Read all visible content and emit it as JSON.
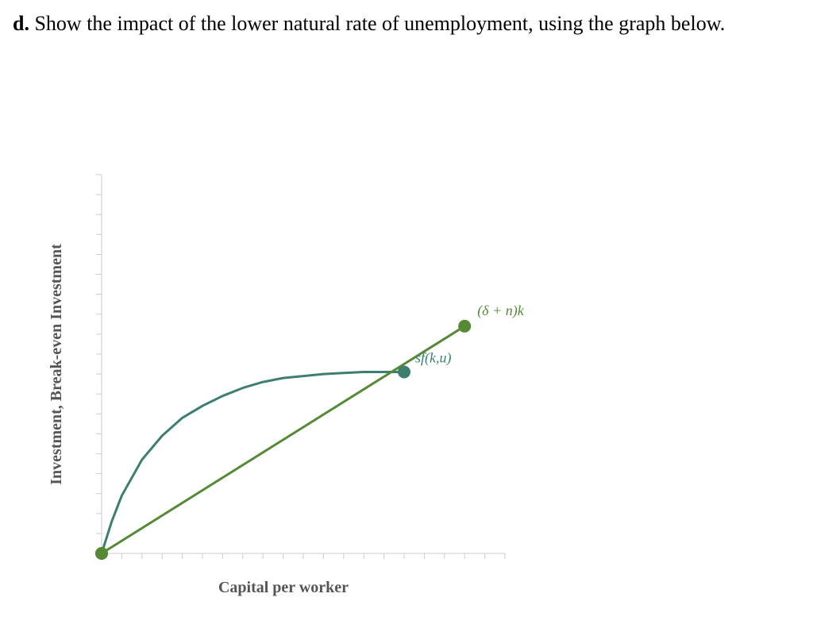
{
  "question": {
    "prefix": "d.",
    "text": " Show the impact of the lower natural rate of unemployment, using the graph below."
  },
  "chart_data": {
    "type": "line",
    "xlabel": "Capital per worker",
    "ylabel": "Investment, Break-even Investment",
    "xlim": [
      0,
      20
    ],
    "ylim": [
      0,
      19
    ],
    "grid": false,
    "series": [
      {
        "name": "sf(k,u)",
        "color": "#3d7f6e",
        "points": [
          [
            0,
            0
          ],
          [
            0.5,
            1.6
          ],
          [
            1,
            2.9
          ],
          [
            2,
            4.7
          ],
          [
            3,
            5.9
          ],
          [
            4,
            6.8
          ],
          [
            5,
            7.4
          ],
          [
            6,
            7.9
          ],
          [
            7,
            8.3
          ],
          [
            8,
            8.6
          ],
          [
            9,
            8.8
          ],
          [
            10,
            8.9
          ],
          [
            11,
            9.0
          ],
          [
            12,
            9.05
          ],
          [
            13,
            9.1
          ],
          [
            14,
            9.1
          ],
          [
            15,
            9.1
          ]
        ],
        "endpoints": [
          [
            0,
            0
          ],
          [
            15,
            9.1
          ]
        ]
      },
      {
        "name": "(δ + n)k",
        "color": "#568936",
        "points": [
          [
            0,
            0
          ],
          [
            18,
            11.4
          ]
        ],
        "endpoints": [
          [
            0,
            0
          ],
          [
            18,
            11.4
          ]
        ]
      }
    ]
  }
}
